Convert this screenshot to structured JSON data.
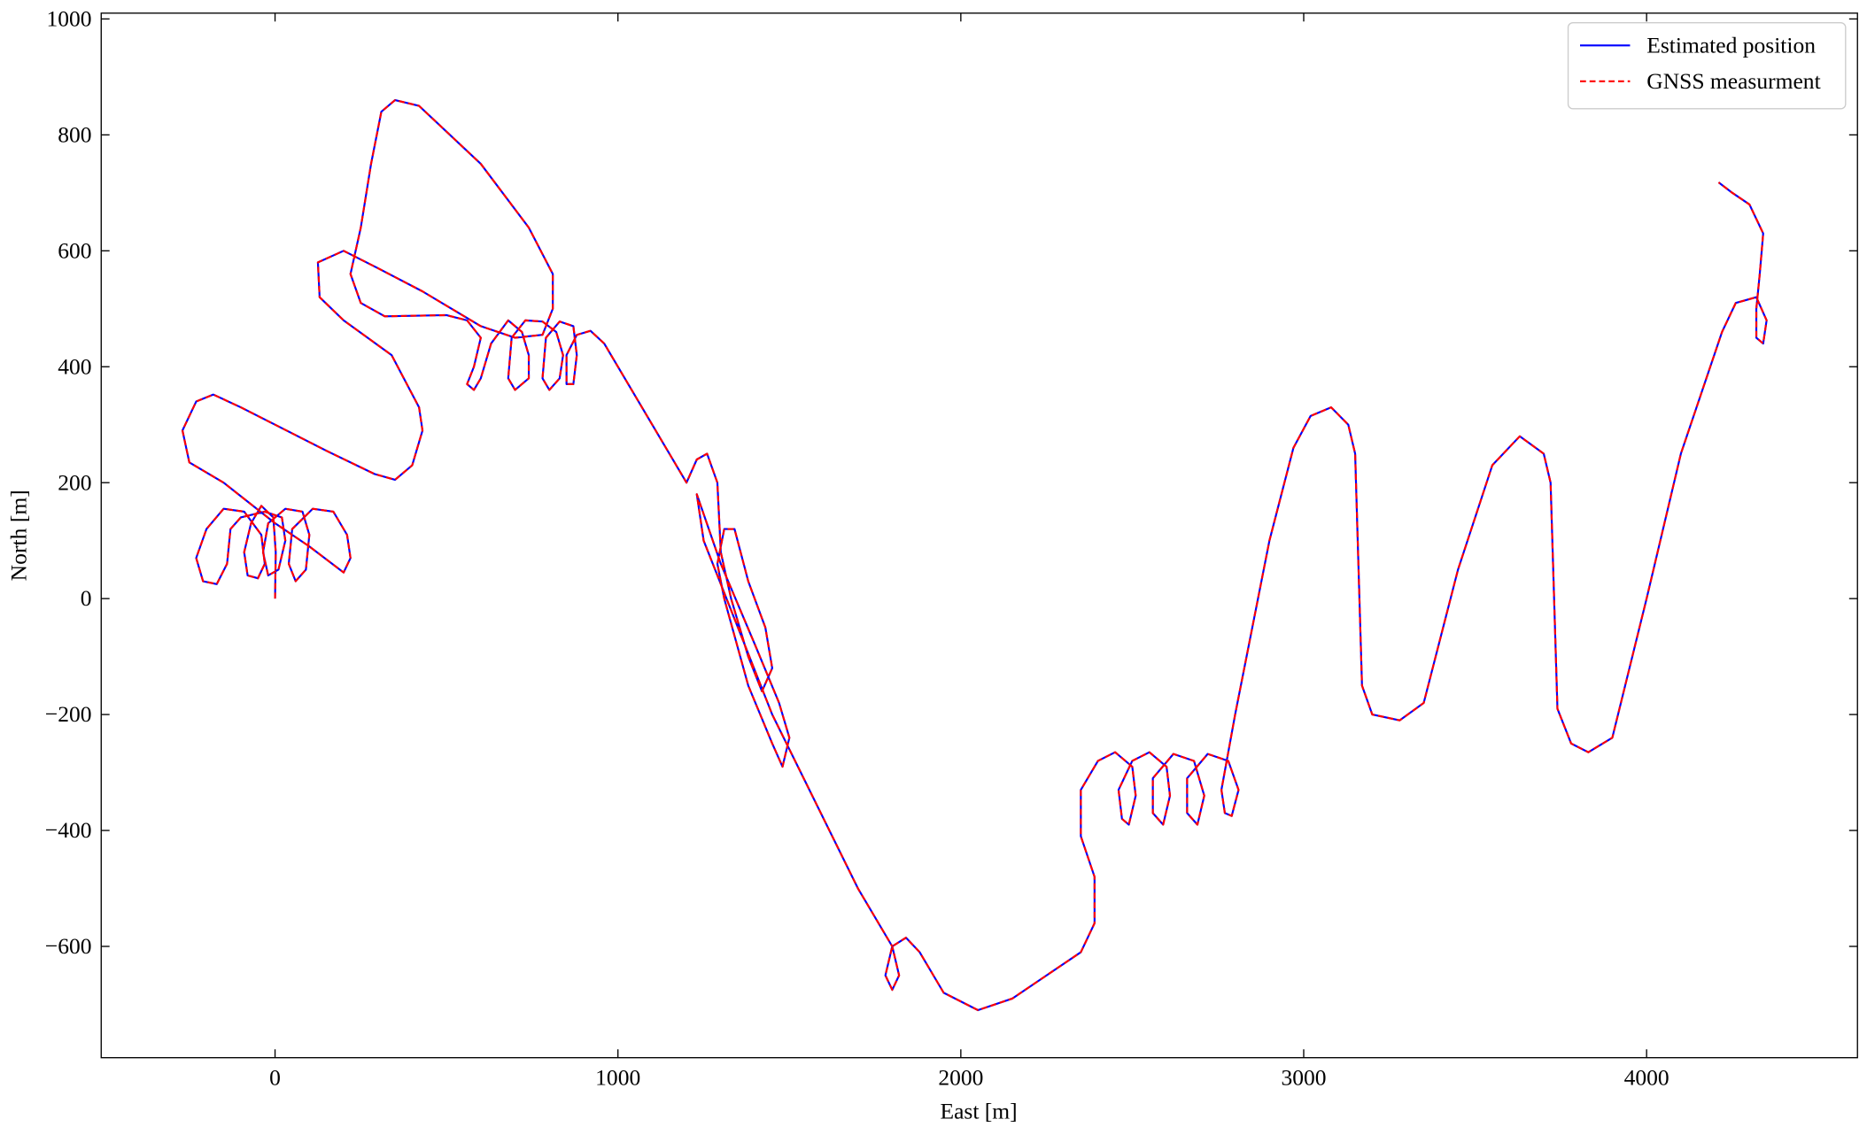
{
  "chart_data": {
    "type": "line",
    "x_label": "East [m]",
    "y_label": "North [m]",
    "xlim": [
      -507,
      4615
    ],
    "ylim": [
      -792,
      1010
    ],
    "xticks": [
      0,
      1000,
      2000,
      3000,
      4000
    ],
    "yticks": [
      {
        "value": -600,
        "label": "−600"
      },
      {
        "value": -400,
        "label": "−400"
      },
      {
        "value": -200,
        "label": "−200"
      },
      0,
      200,
      400,
      600,
      800,
      1000
    ],
    "legend": "upper right",
    "x": [
      0,
      2,
      -5,
      -40,
      -70,
      -90,
      -80,
      -50,
      -30,
      -40,
      -90,
      -150,
      -200,
      -230,
      -210,
      -170,
      -140,
      -130,
      -100,
      -30,
      20,
      30,
      10,
      -20,
      -35,
      -20,
      30,
      80,
      100,
      90,
      60,
      40,
      50,
      110,
      170,
      210,
      220,
      200,
      100,
      0,
      -150,
      -250,
      -270,
      -230,
      -180,
      -100,
      0,
      150,
      290,
      350,
      400,
      430,
      420,
      340,
      200,
      130,
      125,
      200,
      300,
      430,
      600,
      700,
      780,
      810,
      810,
      740,
      600,
      420,
      350,
      310,
      280,
      250,
      220,
      250,
      320,
      500,
      560,
      600,
      580,
      560,
      580,
      600,
      630,
      680,
      720,
      740,
      740,
      700,
      680,
      690,
      730,
      780,
      820,
      840,
      830,
      800,
      780,
      790,
      830,
      870,
      880,
      870,
      850,
      850,
      880,
      920,
      960,
      1100,
      1200,
      1230,
      1260,
      1290,
      1300,
      1330,
      1380,
      1420,
      1450,
      1430,
      1380,
      1340,
      1310,
      1290,
      1310,
      1380,
      1450,
      1480,
      1500,
      1470,
      1400,
      1300,
      1230,
      1250,
      1350,
      1450,
      1550,
      1700,
      1800,
      1820,
      1800,
      1780,
      1800,
      1840,
      1880,
      1950,
      2050,
      2150,
      2250,
      2350,
      2390,
      2390,
      2350,
      2350,
      2400,
      2450,
      2500,
      2510,
      2490,
      2470,
      2460,
      2500,
      2550,
      2600,
      2610,
      2590,
      2560,
      2560,
      2620,
      2680,
      2710,
      2690,
      2660,
      2660,
      2720,
      2780,
      2810,
      2790,
      2770,
      2760,
      2800,
      2900,
      2970,
      3020,
      3080,
      3130,
      3150,
      3170,
      3200,
      3280,
      3350,
      3450,
      3550,
      3630,
      3700,
      3720,
      3740,
      3780,
      3830,
      3900,
      4000,
      4100,
      4220,
      4260,
      4320,
      4350,
      4340,
      4320,
      4320,
      4330,
      4340,
      4300,
      4250,
      4210
    ],
    "series": [
      {
        "name": "Estimated position",
        "color": "#0000ff",
        "dash": false,
        "values": [
          0,
          80,
          140,
          160,
          130,
          80,
          40,
          35,
          60,
          110,
          150,
          155,
          120,
          70,
          30,
          25,
          60,
          120,
          140,
          150,
          140,
          100,
          50,
          40,
          80,
          130,
          155,
          150,
          110,
          50,
          30,
          60,
          120,
          155,
          150,
          110,
          70,
          45,
          90,
          130,
          200,
          235,
          290,
          340,
          352,
          330,
          300,
          255,
          215,
          205,
          230,
          290,
          330,
          420,
          480,
          520,
          580,
          600,
          570,
          530,
          470,
          450,
          455,
          500,
          560,
          640,
          750,
          850,
          860,
          840,
          750,
          640,
          560,
          510,
          487,
          489,
          480,
          450,
          400,
          370,
          360,
          380,
          440,
          480,
          460,
          420,
          380,
          360,
          380,
          450,
          480,
          478,
          460,
          420,
          380,
          360,
          380,
          450,
          478,
          470,
          420,
          370,
          370,
          420,
          455,
          462,
          440,
          300,
          200,
          240,
          250,
          200,
          80,
          0,
          -100,
          -160,
          -120,
          -50,
          30,
          120,
          120,
          60,
          0,
          -150,
          -250,
          -290,
          -240,
          -180,
          -80,
          60,
          180,
          100,
          -50,
          -200,
          -320,
          -500,
          -600,
          -650,
          -675,
          -650,
          -600,
          -585,
          -610,
          -680,
          -710,
          -690,
          -650,
          -610,
          -560,
          -480,
          -410,
          -330,
          -280,
          -265,
          -290,
          -340,
          -390,
          -380,
          -330,
          -280,
          -265,
          -290,
          -340,
          -390,
          -370,
          -310,
          -268,
          -280,
          -340,
          -390,
          -370,
          -310,
          -268,
          -280,
          -330,
          -375,
          -370,
          -330,
          -200,
          100,
          260,
          315,
          330,
          300,
          250,
          -150,
          -200,
          -210,
          -180,
          50,
          230,
          280,
          250,
          200,
          -190,
          -250,
          -265,
          -240,
          0,
          250,
          460,
          510,
          520,
          480,
          440,
          450,
          500,
          560,
          630,
          680,
          700,
          718
        ]
      },
      {
        "name": "GNSS measurment",
        "color": "#ff0000",
        "dash": true,
        "values": [
          0,
          80,
          140,
          160,
          130,
          80,
          40,
          35,
          60,
          110,
          150,
          155,
          120,
          70,
          30,
          25,
          60,
          120,
          140,
          150,
          140,
          100,
          50,
          40,
          80,
          130,
          155,
          150,
          110,
          50,
          30,
          60,
          120,
          155,
          150,
          110,
          70,
          45,
          90,
          130,
          200,
          235,
          290,
          340,
          352,
          330,
          300,
          255,
          215,
          205,
          230,
          290,
          330,
          420,
          480,
          520,
          580,
          600,
          570,
          530,
          470,
          450,
          455,
          500,
          560,
          640,
          750,
          850,
          860,
          840,
          750,
          640,
          560,
          510,
          487,
          489,
          480,
          450,
          400,
          370,
          360,
          380,
          440,
          480,
          460,
          420,
          380,
          360,
          380,
          450,
          480,
          478,
          460,
          420,
          380,
          360,
          380,
          450,
          478,
          470,
          420,
          370,
          370,
          420,
          455,
          462,
          440,
          300,
          200,
          240,
          250,
          200,
          80,
          0,
          -100,
          -160,
          -120,
          -50,
          30,
          120,
          120,
          60,
          0,
          -150,
          -250,
          -290,
          -240,
          -180,
          -80,
          60,
          180,
          100,
          -50,
          -200,
          -320,
          -500,
          -600,
          -650,
          -675,
          -650,
          -600,
          -585,
          -610,
          -680,
          -710,
          -690,
          -650,
          -610,
          -560,
          -480,
          -410,
          -330,
          -280,
          -265,
          -290,
          -340,
          -390,
          -380,
          -330,
          -280,
          -265,
          -290,
          -340,
          -390,
          -370,
          -310,
          -268,
          -280,
          -340,
          -390,
          -370,
          -310,
          -268,
          -280,
          -330,
          -375,
          -370,
          -330,
          -200,
          100,
          260,
          315,
          330,
          300,
          250,
          -150,
          -200,
          -210,
          -180,
          50,
          230,
          280,
          250,
          200,
          -190,
          -250,
          -265,
          -240,
          0,
          250,
          460,
          510,
          520,
          480,
          440,
          450,
          500,
          560,
          630,
          680,
          700,
          718
        ]
      }
    ]
  }
}
